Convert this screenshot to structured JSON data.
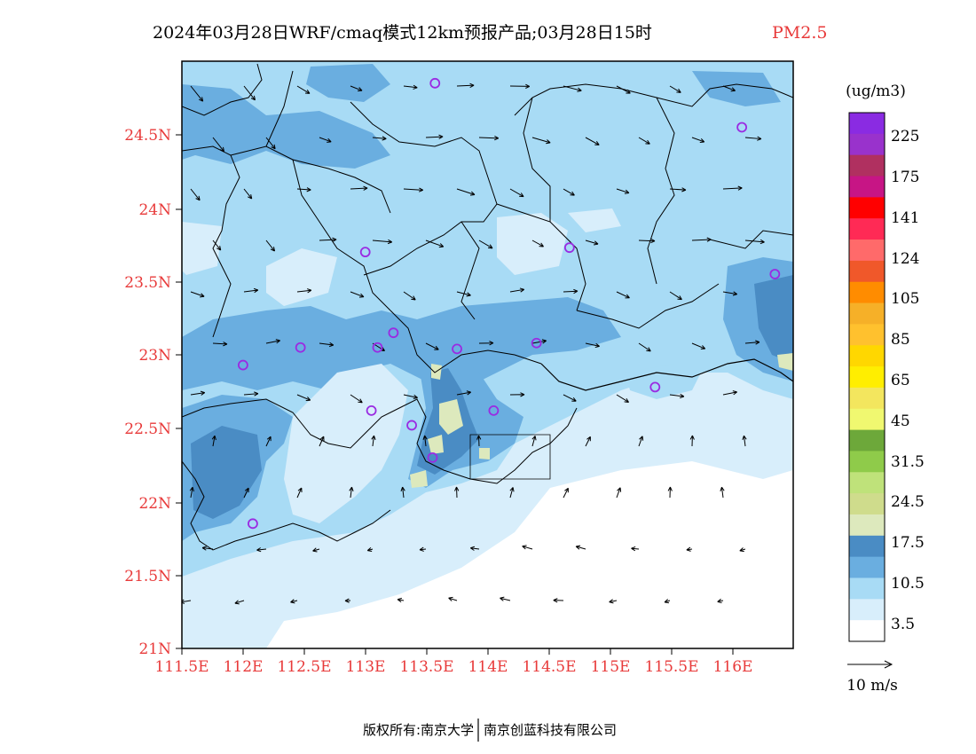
{
  "title": {
    "main": "2024年03月28日WRF/cmaq模式12km预报产品;03月28日15时",
    "variable": "PM2.5"
  },
  "map": {
    "lon_range": [
      111.5,
      116.5
    ],
    "lat_range": [
      21.0,
      25.0
    ],
    "lat_ticks": [
      "24.5N",
      "24N",
      "23.5N",
      "23N",
      "22.5N",
      "22N",
      "21.5N",
      "21N"
    ],
    "lon_ticks": [
      "111.5E",
      "112E",
      "112.5E",
      "113E",
      "113.5E",
      "114E",
      "114.5E",
      "115E",
      "115.5E",
      "116E"
    ],
    "stations": [
      [
        112.0,
        22.93
      ],
      [
        112.47,
        23.05
      ],
      [
        112.08,
        21.85
      ],
      [
        113.0,
        23.7
      ],
      [
        113.1,
        23.05
      ],
      [
        113.23,
        23.15
      ],
      [
        113.05,
        22.62
      ],
      [
        113.38,
        22.52
      ],
      [
        113.55,
        22.3
      ],
      [
        113.57,
        24.85
      ],
      [
        113.75,
        23.04
      ],
      [
        114.05,
        22.62
      ],
      [
        114.4,
        23.08
      ],
      [
        114.67,
        23.73
      ],
      [
        115.37,
        22.78
      ],
      [
        116.08,
        24.55
      ],
      [
        116.35,
        23.55
      ]
    ]
  },
  "legend": {
    "unit": "(ug/m3)",
    "levels": [
      "225",
      "175",
      "141",
      "124",
      "105",
      "85",
      "65",
      "45",
      "31.5",
      "24.5",
      "17.5",
      "10.5",
      "3.5"
    ],
    "colors_top_to_bottom": [
      "#8a2be2",
      "#9932cc",
      "#b03060",
      "#c71585",
      "#ff0000",
      "#ff2a55",
      "#ff6a6a",
      "#f0582a",
      "#ff8c00",
      "#f6b028",
      "#ffc12e",
      "#ffd700",
      "#ffee00",
      "#f3e65e",
      "#f0f870",
      "#6da83a",
      "#8fcb4a",
      "#bfe27a",
      "#cfdc8c",
      "#dde9bd",
      "#4a8cc4",
      "#6aaee0",
      "#a8dbf5",
      "#d8eefb",
      "#ffffff"
    ],
    "vector_label": "10 m/s"
  },
  "footer": {
    "left": "版权所有:南京大学",
    "right": "南京创蓝科技有限公司"
  }
}
